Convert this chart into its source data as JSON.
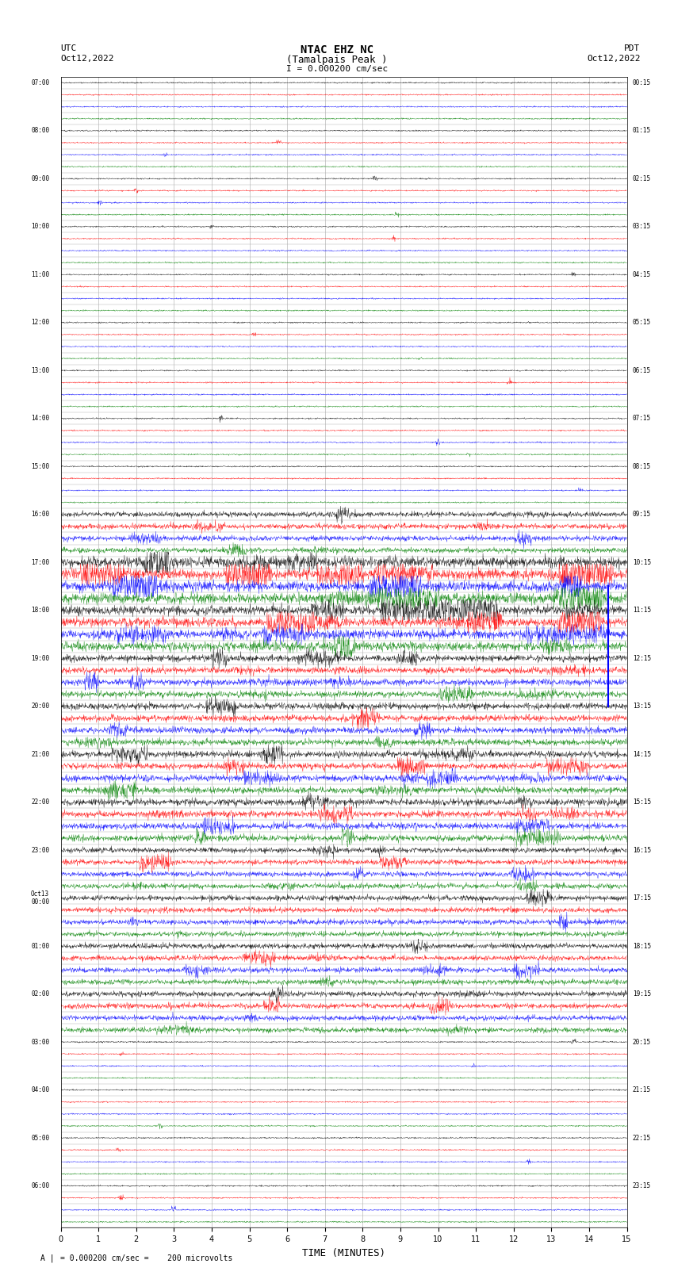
{
  "title_line1": "NTAC EHZ NC",
  "title_line2": "(Tamalpais Peak )",
  "title_line3": "I = 0.000200 cm/sec",
  "left_header_line1": "UTC",
  "left_header_line2": "Oct12,2022",
  "right_header_line1": "PDT",
  "right_header_line2": "Oct12,2022",
  "xlabel": "TIME (MINUTES)",
  "footer": "= 0.000200 cm/sec =    200 microvolts",
  "xlim": [
    0,
    15
  ],
  "xticks": [
    0,
    1,
    2,
    3,
    4,
    5,
    6,
    7,
    8,
    9,
    10,
    11,
    12,
    13,
    14,
    15
  ],
  "background_color": "#ffffff",
  "line_color_cycle": [
    "black",
    "red",
    "blue",
    "green"
  ],
  "grid_color": "#aaaaaa",
  "left_labels": [
    "07:00",
    "",
    "",
    "",
    "08:00",
    "",
    "",
    "",
    "09:00",
    "",
    "",
    "",
    "10:00",
    "",
    "",
    "",
    "11:00",
    "",
    "",
    "",
    "12:00",
    "",
    "",
    "",
    "13:00",
    "",
    "",
    "",
    "14:00",
    "",
    "",
    "",
    "15:00",
    "",
    "",
    "",
    "16:00",
    "",
    "",
    "",
    "17:00",
    "",
    "",
    "",
    "18:00",
    "",
    "",
    "",
    "19:00",
    "",
    "",
    "",
    "20:00",
    "",
    "",
    "",
    "21:00",
    "",
    "",
    "",
    "22:00",
    "",
    "",
    "",
    "23:00",
    "",
    "",
    "",
    "Oct13\n00:00",
    "",
    "",
    "",
    "01:00",
    "",
    "",
    "",
    "02:00",
    "",
    "",
    "",
    "03:00",
    "",
    "",
    "",
    "04:00",
    "",
    "",
    "",
    "05:00",
    "",
    "",
    "",
    "06:00",
    "",
    "",
    ""
  ],
  "right_labels": [
    "00:15",
    "",
    "",
    "",
    "01:15",
    "",
    "",
    "",
    "02:15",
    "",
    "",
    "",
    "03:15",
    "",
    "",
    "",
    "04:15",
    "",
    "",
    "",
    "05:15",
    "",
    "",
    "",
    "06:15",
    "",
    "",
    "",
    "07:15",
    "",
    "",
    "",
    "08:15",
    "",
    "",
    "",
    "09:15",
    "",
    "",
    "",
    "10:15",
    "",
    "",
    "",
    "11:15",
    "",
    "",
    "",
    "12:15",
    "",
    "",
    "",
    "13:15",
    "",
    "",
    "",
    "14:15",
    "",
    "",
    "",
    "15:15",
    "",
    "",
    "",
    "16:15",
    "",
    "",
    "",
    "17:15",
    "",
    "",
    "",
    "18:15",
    "",
    "",
    "",
    "19:15",
    "",
    "",
    "",
    "20:15",
    "",
    "",
    "",
    "21:15",
    "",
    "",
    "",
    "22:15",
    "",
    "",
    "",
    "23:15",
    "",
    "",
    ""
  ],
  "num_traces": 96,
  "noise_level": 0.15
}
